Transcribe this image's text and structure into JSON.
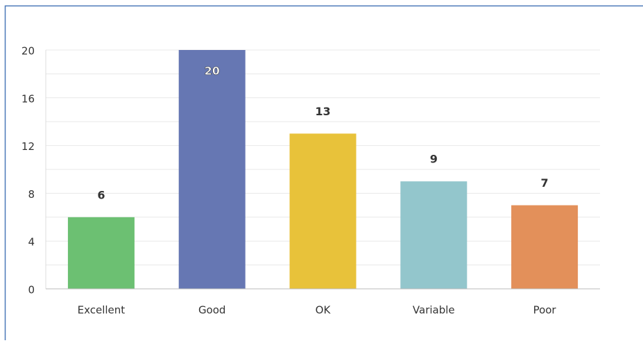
{
  "chart_data": {
    "type": "bar",
    "categories": [
      "Excellent",
      "Good",
      "OK",
      "Variable",
      "Poor"
    ],
    "values": [
      6,
      20,
      13,
      9,
      7
    ],
    "colors": [
      "#6cc072",
      "#6677b3",
      "#e8c23a",
      "#93c6cc",
      "#e3905a"
    ],
    "ylim": [
      0,
      20
    ],
    "yticks": [
      0,
      4,
      8,
      12,
      16,
      20
    ],
    "minor_yticks": [
      2,
      6,
      10,
      14,
      18
    ],
    "grid": true
  }
}
